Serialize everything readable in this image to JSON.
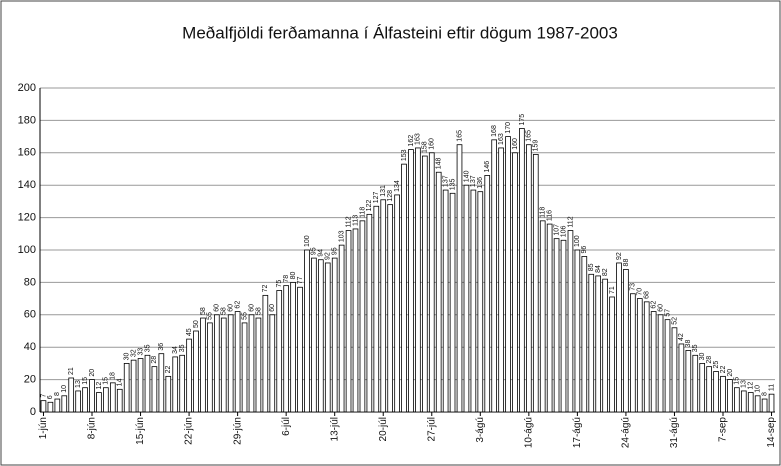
{
  "chart_data": {
    "type": "bar",
    "title": "Meðalfjöldi ferðamanna í Álfasteini eftir dögum 1987-2003",
    "categories": [
      "1-jún",
      null,
      null,
      null,
      null,
      null,
      null,
      "8-jún",
      null,
      null,
      null,
      null,
      null,
      null,
      "15-jún",
      null,
      null,
      null,
      null,
      null,
      null,
      "22-jún",
      null,
      null,
      null,
      null,
      null,
      null,
      "29-jún",
      null,
      null,
      null,
      null,
      null,
      null,
      "6-júl",
      null,
      null,
      null,
      null,
      null,
      null,
      "13-júl",
      null,
      null,
      null,
      null,
      null,
      null,
      "20-júl",
      null,
      null,
      null,
      null,
      null,
      null,
      "27-júl",
      null,
      null,
      null,
      null,
      null,
      null,
      "3-ágú",
      null,
      null,
      null,
      null,
      null,
      null,
      "10-ágú",
      null,
      null,
      null,
      null,
      null,
      null,
      "17-ágú",
      null,
      null,
      null,
      null,
      null,
      null,
      "24-ágú",
      null,
      null,
      null,
      null,
      null,
      null,
      "31-ágú",
      null,
      null,
      null,
      null,
      null,
      null,
      "7-sep",
      null,
      null,
      null,
      null,
      null,
      null,
      "14-sep"
    ],
    "values": [
      7,
      6,
      8,
      10,
      21,
      13,
      15,
      20,
      12,
      15,
      18,
      14,
      30,
      32,
      33,
      35,
      28,
      36,
      22,
      34,
      35,
      45,
      50,
      58,
      55,
      60,
      58,
      60,
      62,
      55,
      60,
      58,
      72,
      60,
      75,
      78,
      80,
      77,
      100,
      95,
      94,
      92,
      95,
      103,
      112,
      113,
      118,
      122,
      127,
      131,
      128,
      134,
      153,
      162,
      163,
      158,
      160,
      148,
      137,
      135,
      165,
      140,
      137,
      136,
      146,
      168,
      163,
      170,
      160,
      175,
      165,
      159,
      118,
      116,
      107,
      106,
      112,
      100,
      96,
      85,
      84,
      82,
      71,
      92,
      88,
      73,
      70,
      68,
      62,
      60,
      57,
      52,
      42,
      38,
      35,
      30,
      28,
      25,
      22,
      20,
      15,
      13,
      12,
      10,
      8,
      11
    ],
    "color": "#ffffff",
    "ylim": [
      0,
      200
    ],
    "yticks": [
      0,
      20,
      40,
      60,
      80,
      100,
      120,
      140,
      160,
      180,
      200
    ],
    "grid": true
  }
}
